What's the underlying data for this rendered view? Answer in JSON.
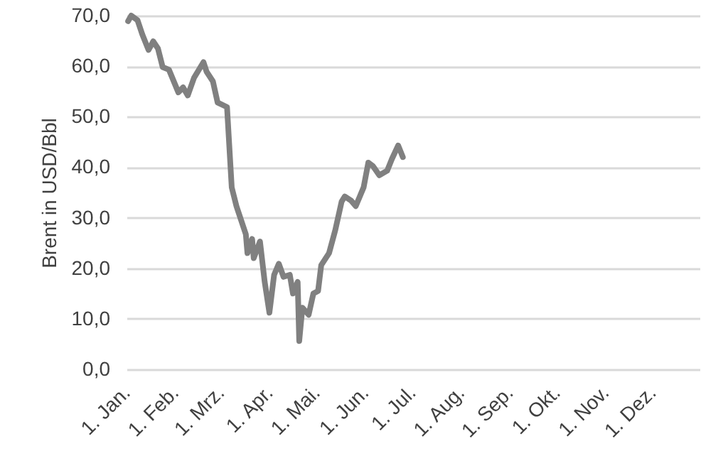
{
  "chart_data": {
    "type": "line",
    "ylabel": "Brent in USD/Bbl",
    "x": [
      "--01-02",
      "--01-04",
      "--01-08",
      "--01-11",
      "--01-15",
      "--01-18",
      "--01-21",
      "--01-24",
      "--01-28",
      "--02-03",
      "--02-06",
      "--02-09",
      "--02-13",
      "--02-19",
      "--02-21",
      "--02-25",
      "--02-28",
      "--03-05",
      "--03-08",
      "--03-11",
      "--03-17",
      "--03-18",
      "--03-21",
      "--03-22",
      "--03-26",
      "--03-29",
      "--04-01",
      "--04-04",
      "--04-07",
      "--04-10",
      "--04-14",
      "--04-16",
      "--04-19",
      "--04-20",
      "--04-22",
      "--04-26",
      "--04-29",
      "--05-02",
      "--05-04",
      "--05-09",
      "--05-13",
      "--05-17",
      "--05-19",
      "--05-23",
      "--05-26",
      "--05-31",
      "--06-03",
      "--06-06",
      "--06-10",
      "--06-15",
      "--06-18",
      "--06-22",
      "--06-25"
    ],
    "series": [
      {
        "color": "#808080",
        "values": [
          68.9,
          70,
          69.1,
          66.3,
          63.2,
          64.9,
          63.5,
          59.8,
          59.3,
          54.8,
          55.8,
          54.2,
          57.7,
          60.8,
          58.9,
          57.0,
          52.8,
          51.9,
          36.0,
          32.3,
          26.7,
          23.0,
          25.8,
          22.0,
          25.3,
          17.3,
          11.2,
          18.7,
          20.9,
          18.3,
          18.7,
          15.0,
          17.3,
          5.6,
          12.2,
          10.8,
          15.0,
          15.5,
          20.6,
          23.0,
          27.6,
          33.2,
          34.2,
          33.4,
          32.3,
          36.0,
          40.9,
          40.2,
          38.4,
          39.3,
          41.6,
          44.3,
          42.0
        ]
      }
    ],
    "xlim": [
      "--01-01",
      "--12-31"
    ],
    "xticks": [
      {
        "value": "--01-01",
        "label": "1. Jan."
      },
      {
        "value": "--02-01",
        "label": "1. Feb."
      },
      {
        "value": "--03-01",
        "label": "1. Mrz."
      },
      {
        "value": "--04-01",
        "label": "1. Apr."
      },
      {
        "value": "--05-01",
        "label": "1. Mai."
      },
      {
        "value": "--06-01",
        "label": "1. Jun."
      },
      {
        "value": "--07-01",
        "label": "1. Jul."
      },
      {
        "value": "--08-01",
        "label": "1. Aug."
      },
      {
        "value": "--09-01",
        "label": "1. Sep."
      },
      {
        "value": "--10-01",
        "label": "1. Okt."
      },
      {
        "value": "--11-01",
        "label": "1. Nov."
      },
      {
        "value": "--12-01",
        "label": "1. Dez."
      }
    ],
    "ylim": [
      0,
      70
    ],
    "yticks": [
      {
        "value": 0,
        "label": "0,0"
      },
      {
        "value": 10,
        "label": "10,0"
      },
      {
        "value": 20,
        "label": "20,0"
      },
      {
        "value": 30,
        "label": "30,0"
      },
      {
        "value": 40,
        "label": "40,0"
      },
      {
        "value": 50,
        "label": "50,0"
      },
      {
        "value": 60,
        "label": "60,0"
      },
      {
        "value": 70,
        "label": "70,0"
      }
    ],
    "grid": "y",
    "line_style": "solid",
    "marker": "none"
  }
}
